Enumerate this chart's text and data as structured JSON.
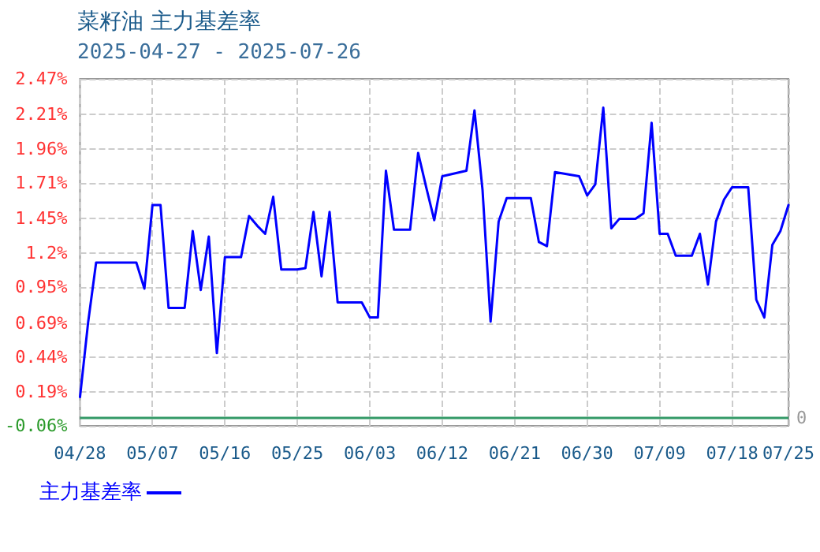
{
  "chart_data": {
    "type": "line",
    "title": "菜籽油 主力基差率",
    "subtitle": "2025-04-27 - 2025-07-26",
    "x": [
      "2025-04-28",
      "2025-04-29",
      "2025-04-30",
      "2025-05-05",
      "2025-05-06",
      "2025-05-07",
      "2025-05-08",
      "2025-05-09",
      "2025-05-11",
      "2025-05-12",
      "2025-05-13",
      "2025-05-14",
      "2025-05-15",
      "2025-05-16",
      "2025-05-18",
      "2025-05-19",
      "2025-05-20",
      "2025-05-21",
      "2025-05-22",
      "2025-05-23",
      "2025-05-25",
      "2025-05-26",
      "2025-05-27",
      "2025-05-28",
      "2025-05-29",
      "2025-05-30",
      "2025-06-02",
      "2025-06-03",
      "2025-06-04",
      "2025-06-05",
      "2025-06-06",
      "2025-06-08",
      "2025-06-09",
      "2025-06-10",
      "2025-06-11",
      "2025-06-12",
      "2025-06-15",
      "2025-06-16",
      "2025-06-17",
      "2025-06-18",
      "2025-06-19",
      "2025-06-20",
      "2025-06-23",
      "2025-06-24",
      "2025-06-25",
      "2025-06-26",
      "2025-06-29",
      "2025-06-30",
      "2025-07-01",
      "2025-07-02",
      "2025-07-03",
      "2025-07-04",
      "2025-07-06",
      "2025-07-07",
      "2025-07-08",
      "2025-07-09",
      "2025-07-10",
      "2025-07-11",
      "2025-07-13",
      "2025-07-14",
      "2025-07-15",
      "2025-07-16",
      "2025-07-17",
      "2025-07-18",
      "2025-07-20",
      "2025-07-21",
      "2025-07-22",
      "2025-07-23",
      "2025-07-24",
      "2025-07-25"
    ],
    "series": [
      {
        "name": "主力基差率",
        "color": "#0000ff",
        "values": [
          0.15,
          0.69,
          1.13,
          1.13,
          0.94,
          1.55,
          1.55,
          0.8,
          0.8,
          1.36,
          0.93,
          1.32,
          0.47,
          1.17,
          1.17,
          1.47,
          1.4,
          1.34,
          1.61,
          1.08,
          1.08,
          1.09,
          1.5,
          1.03,
          1.5,
          0.84,
          0.84,
          0.73,
          0.73,
          1.8,
          1.37,
          1.37,
          1.93,
          1.68,
          1.44,
          1.76,
          1.8,
          2.24,
          1.66,
          0.7,
          1.43,
          1.6,
          1.6,
          1.28,
          1.25,
          1.79,
          1.76,
          1.62,
          1.7,
          2.26,
          1.38,
          1.45,
          1.45,
          1.49,
          2.15,
          1.34,
          1.34,
          1.18,
          1.18,
          1.34,
          0.97,
          1.43,
          1.59,
          1.68,
          1.68,
          0.86,
          0.73,
          1.26,
          1.36,
          1.55
        ]
      }
    ],
    "xlim": [
      "2025-04-28",
      "2025-07-25"
    ],
    "xticks": [
      {
        "value": "2025-04-28",
        "label": "04/28"
      },
      {
        "value": "2025-05-07",
        "label": "05/07"
      },
      {
        "value": "2025-05-16",
        "label": "05/16"
      },
      {
        "value": "2025-05-25",
        "label": "05/25"
      },
      {
        "value": "2025-06-03",
        "label": "06/03"
      },
      {
        "value": "2025-06-12",
        "label": "06/12"
      },
      {
        "value": "2025-06-21",
        "label": "06/21"
      },
      {
        "value": "2025-06-30",
        "label": "06/30"
      },
      {
        "value": "2025-07-09",
        "label": "07/09"
      },
      {
        "value": "2025-07-18",
        "label": "07/18"
      },
      {
        "value": "2025-07-25",
        "label": "07/25"
      }
    ],
    "ylim": [
      -0.06,
      2.47
    ],
    "yticks": [
      {
        "value": -0.06,
        "label": "-0.06%"
      },
      {
        "value": 0.19,
        "label": "0.19%"
      },
      {
        "value": 0.44,
        "label": "0.44%"
      },
      {
        "value": 0.69,
        "label": "0.69%"
      },
      {
        "value": 0.95,
        "label": "0.95%"
      },
      {
        "value": 1.2,
        "label": "1.2%"
      },
      {
        "value": 1.45,
        "label": "1.45%"
      },
      {
        "value": 1.71,
        "label": "1.71%"
      },
      {
        "value": 1.96,
        "label": "1.96%"
      },
      {
        "value": 2.21,
        "label": "2.21%"
      },
      {
        "value": 2.47,
        "label": "2.47%"
      }
    ],
    "ref_lines": [
      {
        "axis": "y",
        "value": 0,
        "label": "0",
        "color": "#339966"
      }
    ],
    "grid": true,
    "legend": "bottom left",
    "marker": "none",
    "line_style": "solid"
  }
}
